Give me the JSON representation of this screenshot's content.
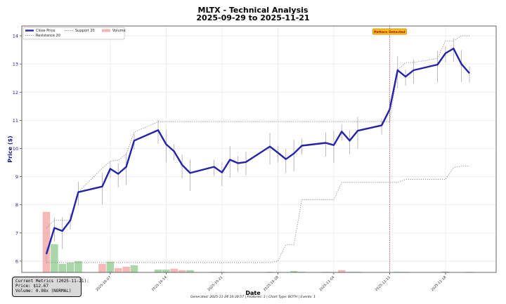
{
  "header": {
    "title_line1": "MLTX - Technical Analysis",
    "title_line2": "2025-09-29 to 2025-11-21"
  },
  "metrics_box": {
    "line1": "Current Metrics (2025-11-21):",
    "line2": "Price: $12.67",
    "line3": "Volume: 0.98x (NORMAL)"
  },
  "footer": {
    "text": "Generated: 2025-11-24 10:30:57 | Features: 3 | Chart Type: BOTH | Events: 1"
  },
  "annotation": {
    "label": "Pattern Detected",
    "date": "2025-11-11"
  },
  "colors": {
    "close": "#2222aa",
    "support": "#888888",
    "resistance": "#888888",
    "volume_up": "#8ec98e",
    "volume_down": "#f4a0a0",
    "axis_label": "#1a1a8c",
    "event_line": "#b04040",
    "badge_bg": "#f5c518",
    "badge_border": "#c08000",
    "badge_text": "#b00000"
  },
  "chart_data": {
    "type": "line",
    "title": "MLTX - Technical Analysis\n2025-09-29 to 2025-11-21",
    "xlabel": "Date",
    "ylabel": "Price ($)",
    "ylim": [
      5.6,
      14.35
    ],
    "yticks": [
      6,
      7,
      8,
      9,
      10,
      11,
      12,
      13,
      14
    ],
    "xticks": [
      "2025-10-07",
      "2025-10-14",
      "2025-10-21",
      "2025-10-28",
      "2025-11-04",
      "2025-11-11",
      "2025-11-18"
    ],
    "grid": true,
    "legend": {
      "position": "upper left",
      "entries": [
        "Close Price",
        "Support 20",
        "Resistance 20",
        "Volume"
      ]
    },
    "x": [
      "2025-09-29",
      "2025-09-30",
      "2025-10-01",
      "2025-10-02",
      "2025-10-03",
      "2025-10-06",
      "2025-10-07",
      "2025-10-08",
      "2025-10-09",
      "2025-10-10",
      "2025-10-13",
      "2025-10-14",
      "2025-10-15",
      "2025-10-16",
      "2025-10-17",
      "2025-10-20",
      "2025-10-21",
      "2025-10-22",
      "2025-10-23",
      "2025-10-24",
      "2025-10-27",
      "2025-10-28",
      "2025-10-29",
      "2025-10-30",
      "2025-10-31",
      "2025-11-03",
      "2025-11-04",
      "2025-11-05",
      "2025-11-06",
      "2025-11-07",
      "2025-11-10",
      "2025-11-11",
      "2025-11-12",
      "2025-11-13",
      "2025-11-14",
      "2025-11-17",
      "2025-11-18",
      "2025-11-19",
      "2025-11-20",
      "2025-11-21"
    ],
    "series": [
      {
        "name": "Close Price",
        "values": [
          6.25,
          7.18,
          7.07,
          7.45,
          8.45,
          8.65,
          9.28,
          9.1,
          9.35,
          10.28,
          10.65,
          10.15,
          9.9,
          9.42,
          9.13,
          9.35,
          9.15,
          9.6,
          9.48,
          9.52,
          10.07,
          9.85,
          9.62,
          9.82,
          10.1,
          10.2,
          10.12,
          10.6,
          10.28,
          10.63,
          10.82,
          11.38,
          12.78,
          12.55,
          12.78,
          12.98,
          13.38,
          13.55,
          13.0,
          12.67
        ]
      },
      {
        "name": "Support 20",
        "values": [
          5.95,
          5.95,
          5.95,
          5.95,
          5.95,
          5.95,
          5.95,
          5.95,
          5.95,
          5.95,
          5.95,
          5.95,
          5.95,
          5.95,
          5.95,
          5.95,
          5.95,
          5.95,
          5.95,
          5.95,
          5.95,
          6.0,
          6.58,
          6.58,
          8.18,
          8.18,
          8.18,
          8.8,
          8.8,
          8.8,
          8.8,
          8.8,
          8.8,
          8.9,
          8.9,
          8.9,
          8.9,
          9.32,
          9.38,
          9.38
        ]
      },
      {
        "name": "Resistance 20",
        "values": [
          7.18,
          7.45,
          7.45,
          7.45,
          8.45,
          9.3,
          9.55,
          9.58,
          9.8,
          10.58,
          10.95,
          10.95,
          10.95,
          10.95,
          10.95,
          10.95,
          10.95,
          10.95,
          10.95,
          10.95,
          10.95,
          10.95,
          10.95,
          10.95,
          10.95,
          10.95,
          10.95,
          10.95,
          10.95,
          10.95,
          10.95,
          10.95,
          12.8,
          13.05,
          13.05,
          13.2,
          13.82,
          13.82,
          14.0,
          14.0
        ]
      },
      {
        "name": "Volume",
        "values": [
          7.75,
          6.6,
          5.9,
          5.95,
          6.0,
          5.9,
          5.98,
          5.75,
          5.8,
          5.85,
          5.7,
          5.7,
          5.73,
          5.68,
          5.68,
          5.62,
          5.62,
          5.6,
          5.6,
          5.6,
          5.62,
          5.6,
          5.6,
          5.65,
          5.62,
          5.62,
          5.6,
          5.68,
          5.62,
          5.62,
          5.6,
          5.6,
          5.62,
          5.62,
          5.6,
          5.6,
          5.63,
          5.6,
          5.6,
          5.62
        ]
      }
    ],
    "volume_direction": [
      "down",
      "up",
      "up",
      "up",
      "up",
      "down",
      "up",
      "down",
      "down",
      "up",
      "up",
      "up",
      "down",
      "down",
      "up",
      "up",
      "down",
      "up",
      "down",
      "up",
      "up",
      "down",
      "up",
      "up",
      "up",
      "down",
      "down",
      "down",
      "up",
      "up",
      "up",
      "up",
      "up",
      "down",
      "down",
      "up",
      "up",
      "down",
      "down",
      "down"
    ],
    "annotations": [
      {
        "type": "vline",
        "x": "2025-11-11",
        "label": "Pattern Detected"
      }
    ]
  }
}
